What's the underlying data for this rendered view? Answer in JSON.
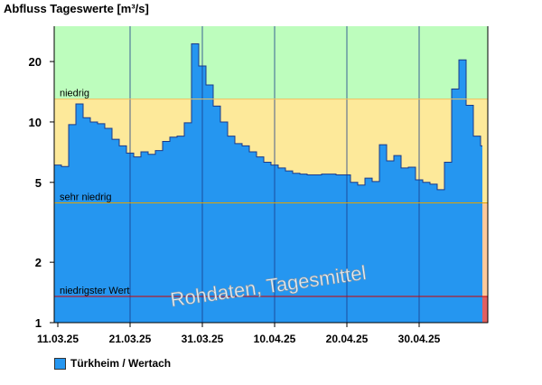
{
  "chart_data": {
    "type": "area",
    "title": "Abfluss Tageswerte [m³/s]",
    "scale": "log",
    "ylim": [
      1,
      30
    ],
    "yticks": [
      1,
      2,
      5,
      10,
      20
    ],
    "xticks": [
      "11.03.25",
      "21.03.25",
      "31.03.25",
      "10.04.25",
      "20.04.25",
      "30.04.25"
    ],
    "watermark": "Rohdaten, Tagesmittel",
    "thresholds": [
      {
        "label": "niedrig",
        "value": 13.0,
        "color": "#f0c060"
      },
      {
        "label": "sehr niedrig",
        "value": 3.95,
        "color": "#e2a300"
      },
      {
        "label": "niedrigster Wert",
        "value": 1.35,
        "color": "#d00000"
      }
    ],
    "bands": [
      {
        "from": 13.0,
        "to": 30,
        "color": "#bdfdbd"
      },
      {
        "from": 3.95,
        "to": 13.0,
        "color": "#fde99a"
      }
    ],
    "series": [
      {
        "name": "Türkheim / Wertach",
        "color": "#2596f0",
        "start_label": "11.03.25",
        "values": [
          6.1,
          6.0,
          9.7,
          12.3,
          10.5,
          10.0,
          9.8,
          9.3,
          8.2,
          7.6,
          7.0,
          6.7,
          7.1,
          6.9,
          7.2,
          8.0,
          8.4,
          8.5,
          9.9,
          24.5,
          19.0,
          15.3,
          12.0,
          10.0,
          8.5,
          7.8,
          7.6,
          7.1,
          6.7,
          6.3,
          6.1,
          5.9,
          5.7,
          5.55,
          5.5,
          5.45,
          5.45,
          5.5,
          5.5,
          5.45,
          5.45,
          5.0,
          4.85,
          5.25,
          5.05,
          7.7,
          6.4,
          6.8,
          5.9,
          5.95,
          5.15,
          5.0,
          4.9,
          4.6,
          6.3,
          14.6,
          20.4,
          12.1,
          8.5,
          7.6
        ]
      }
    ]
  }
}
